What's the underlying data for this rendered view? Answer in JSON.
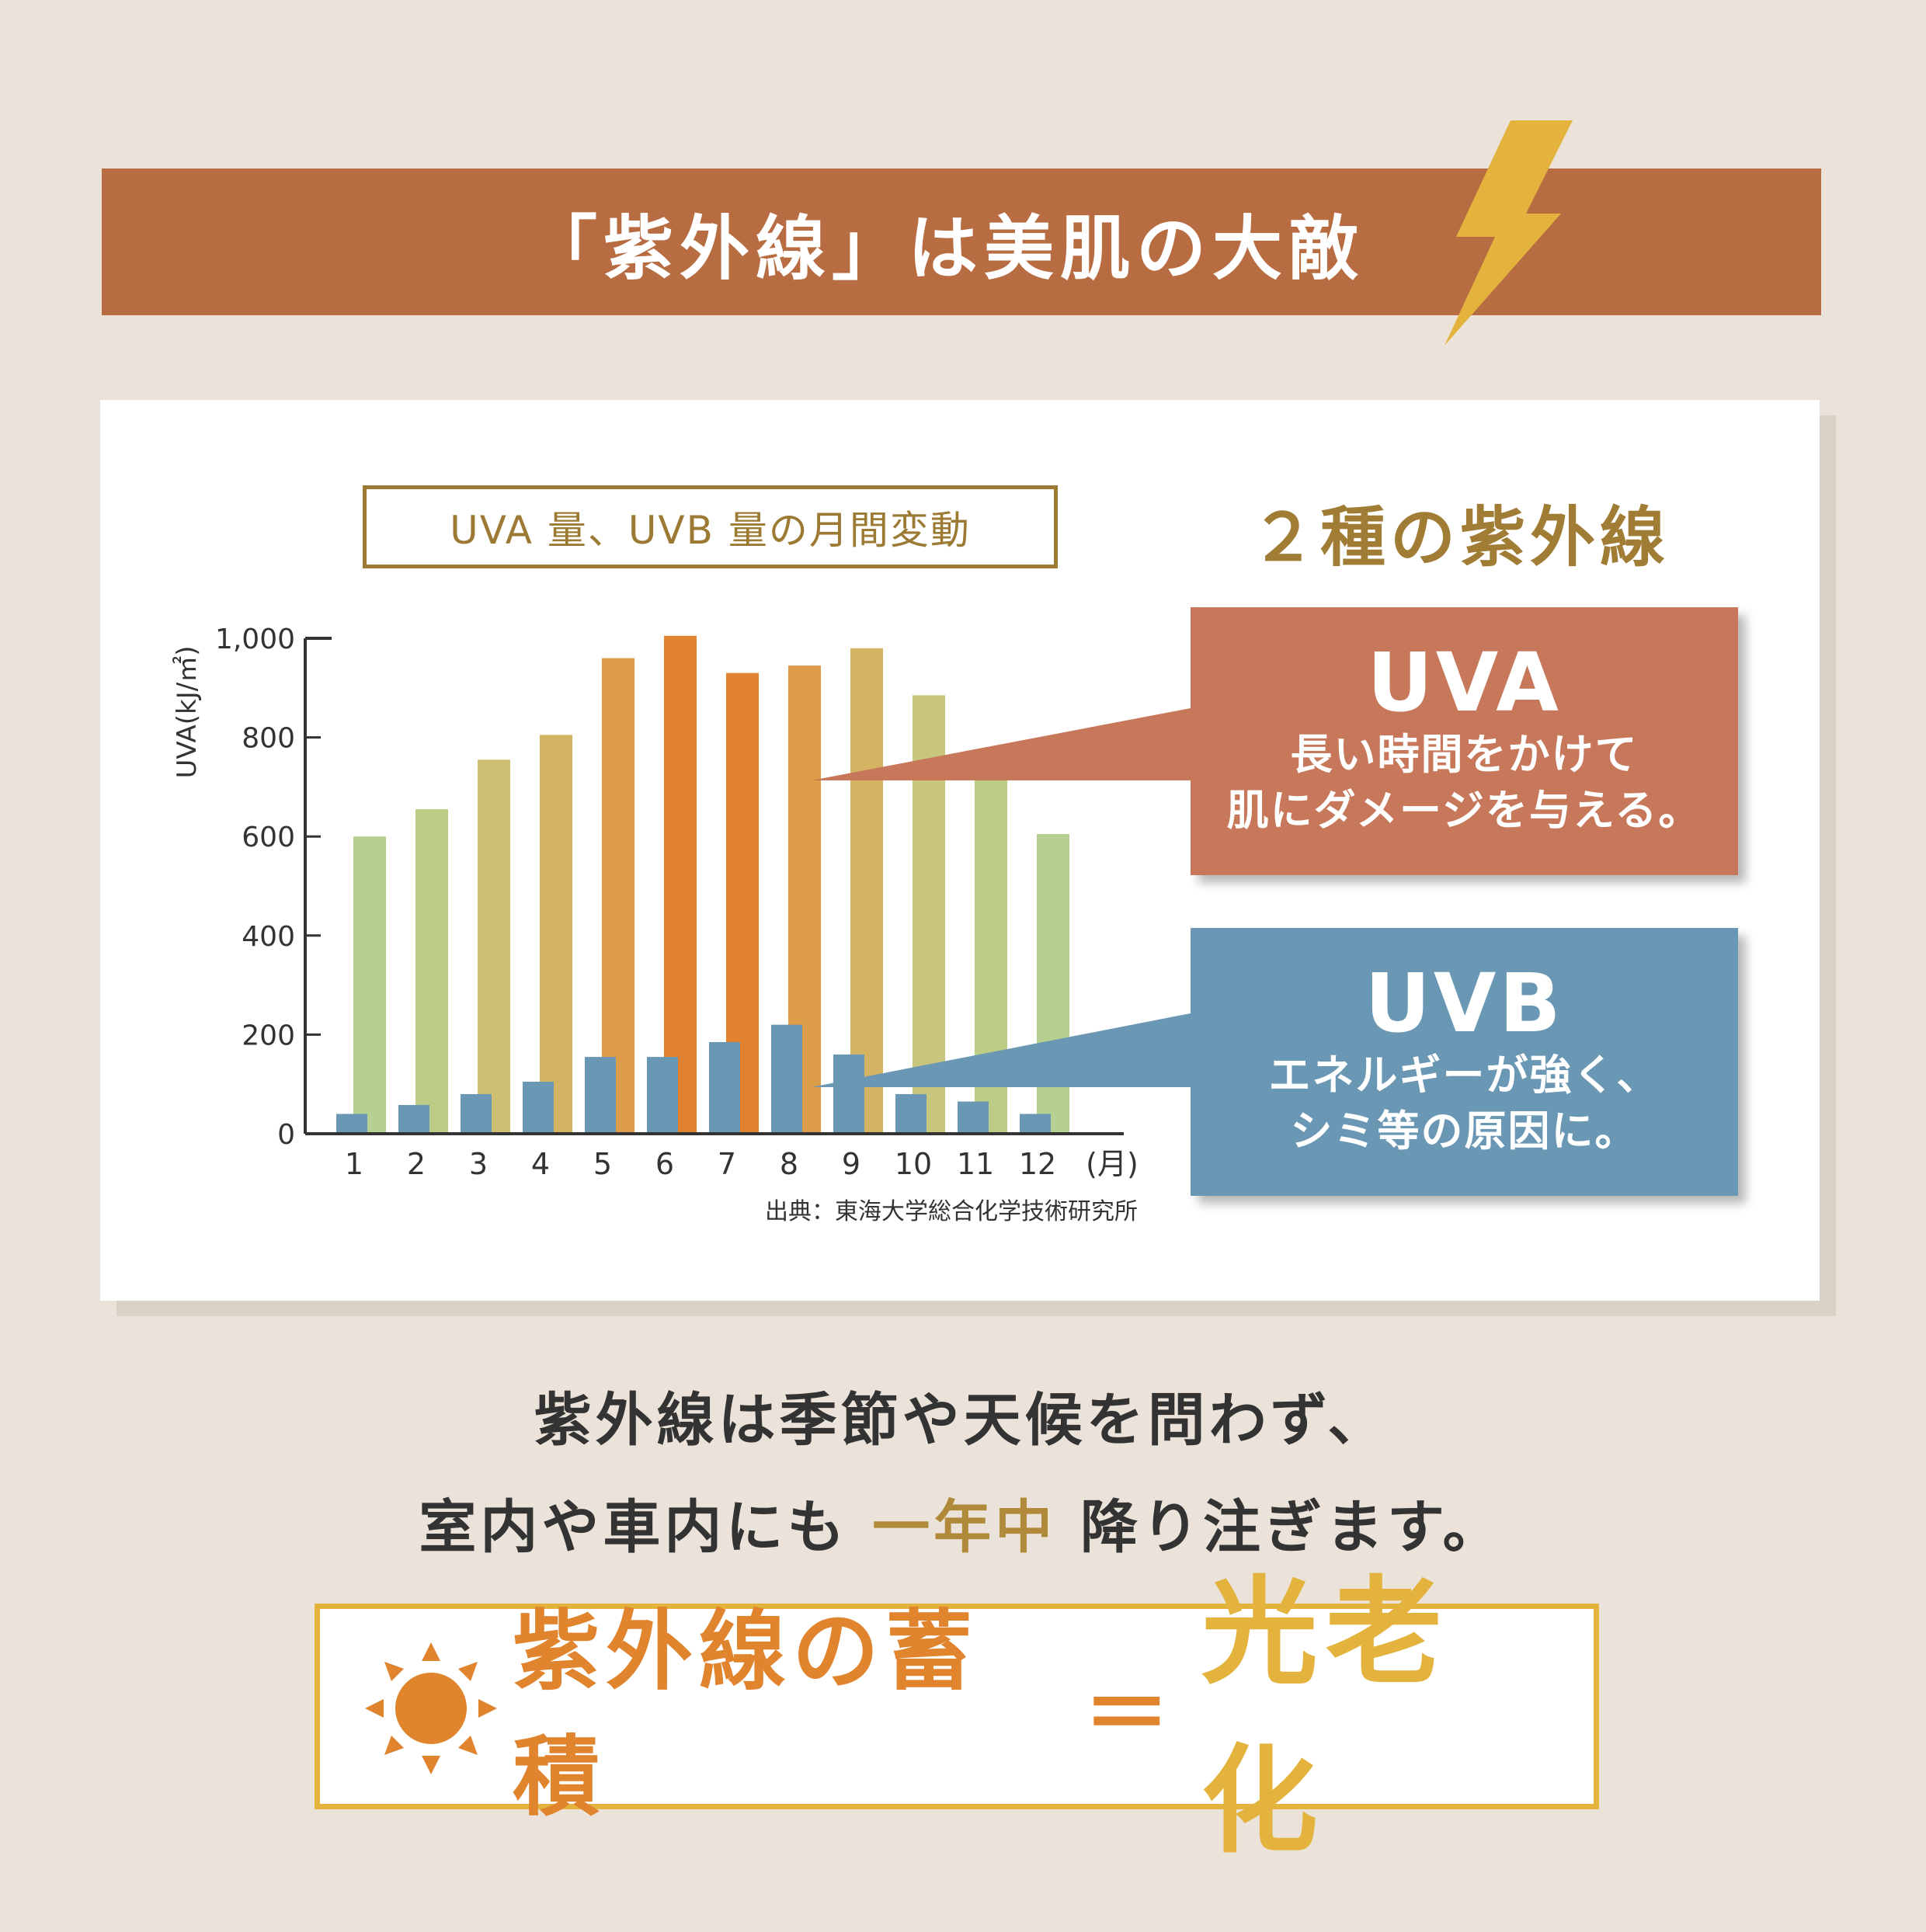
{
  "header": {
    "title": "「紫外線」は美肌の大敵",
    "band_color": "#b86c41",
    "bolt_icon": "lightning-bolt-icon",
    "bolt_color": "#e3b33d"
  },
  "chart_title": "UVA 量、UVB 量の月間変動",
  "types_heading": "２種の紫外線",
  "chart_data": {
    "type": "bar",
    "categories": [
      "1",
      "2",
      "3",
      "4",
      "5",
      "6",
      "7",
      "8",
      "9",
      "10",
      "11",
      "12"
    ],
    "x_unit": "(月)",
    "ylabel": "UVA(kJ/㎡)",
    "ylim": [
      0,
      1000
    ],
    "yticks": [
      "0",
      "200",
      "400",
      "600",
      "800",
      "1,000"
    ],
    "grid": false,
    "series": [
      {
        "name": "UVA",
        "values": [
          600,
          655,
          755,
          805,
          960,
          1005,
          930,
          945,
          980,
          885,
          720,
          605
        ],
        "colors": [
          "#b5d090",
          "#bccc84",
          "#cdc072",
          "#d4b363",
          "#dd9c48",
          "#e0822f",
          "#e0822f",
          "#dd9c48",
          "#d4b363",
          "#c8c57c",
          "#bccc84",
          "#b5d090"
        ]
      },
      {
        "name": "UVB",
        "values": [
          40,
          58,
          80,
          105,
          155,
          155,
          185,
          220,
          160,
          80,
          65,
          40
        ],
        "color": "#6a97b3"
      }
    ]
  },
  "source": "出典：東海大学総合化学技術研究所",
  "callouts": {
    "uva": {
      "title": "UVA",
      "line1": "長い時間をかけて",
      "line2": "肌にダメージを与える。",
      "color": "#c7785a"
    },
    "uvb": {
      "title": "UVB",
      "line1": "エネルギーが強く、",
      "line2": "シミ等の原因に。",
      "color": "#6a97b3"
    }
  },
  "message": {
    "line1": "紫外線は季節や天候を問わず、",
    "line2_pre": "室内や車内にも",
    "line2_accent": "一年中",
    "line2_post": "降り注ぎます。"
  },
  "bottom": {
    "sun_icon": "sun-icon",
    "left": "紫外線の蓄積",
    "sign": "＝",
    "right": "光老化"
  }
}
